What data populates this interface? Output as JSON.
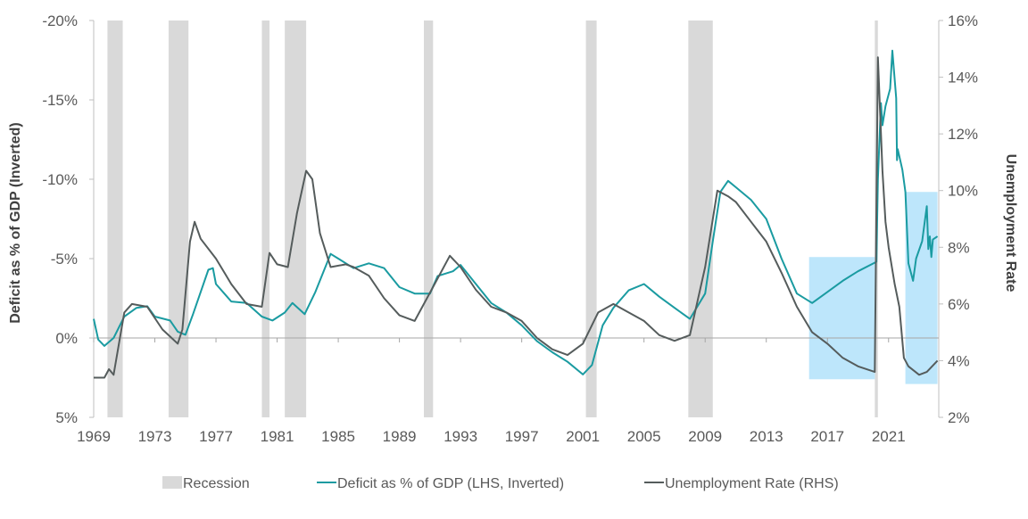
{
  "chart_data": {
    "type": "line",
    "title": "",
    "xlabel": "",
    "ylabel_left": "Deficit as % of GDP (Inverted)",
    "ylabel_right": "Unemployment Rate",
    "x_ticks": [
      "1969",
      "1973",
      "1977",
      "1981",
      "1985",
      "1989",
      "1993",
      "1997",
      "2001",
      "2005",
      "2009",
      "2013",
      "2017",
      "2021"
    ],
    "x_range": [
      1969,
      2024.3
    ],
    "y_left": {
      "range": [
        5,
        -20
      ],
      "inverted": true,
      "ticks": [
        -20,
        -15,
        -10,
        -5,
        0,
        5
      ],
      "tick_labels": [
        "-20%",
        "-15%",
        "-10%",
        "-5%",
        "0%",
        "5%"
      ]
    },
    "y_right": {
      "range": [
        2,
        16
      ],
      "ticks": [
        2,
        4,
        6,
        8,
        10,
        12,
        14,
        16
      ],
      "tick_labels": [
        "2%",
        "4%",
        "6%",
        "8%",
        "10%",
        "12%",
        "14%",
        "16%"
      ]
    },
    "grid": false,
    "legend_position": "bottom",
    "colors": {
      "recession": "#d9d9d9",
      "deficit": "#1a9ba1",
      "unemployment": "#555c5c",
      "highlight": "#bde6fb",
      "axis": "#bfbfbf"
    },
    "recessions": [
      [
        1969.9,
        1970.9
      ],
      [
        1973.9,
        1975.2
      ],
      [
        1980.0,
        1980.5
      ],
      [
        1981.5,
        1982.9
      ],
      [
        1990.6,
        1991.2
      ],
      [
        2001.2,
        2001.9
      ],
      [
        2007.9,
        2009.5
      ],
      [
        2020.1,
        2020.3
      ]
    ],
    "highlights": [
      {
        "x": [
          2015.8,
          2020.1
        ],
        "y_left": [
          -5.1,
          2.6
        ]
      },
      {
        "x": [
          2022.1,
          2024.2
        ],
        "y_left": [
          -9.2,
          2.9
        ]
      }
    ],
    "series": [
      {
        "name": "Deficit as % of GDP (LHS, Inverted)",
        "axis": "left",
        "points": [
          [
            1969.0,
            -1.2
          ],
          [
            1969.3,
            0.1
          ],
          [
            1969.7,
            0.5
          ],
          [
            1970.3,
            0
          ],
          [
            1971,
            -1.35
          ],
          [
            1971.8,
            -1.9
          ],
          [
            1972.5,
            -2.0
          ],
          [
            1973,
            -1.35
          ],
          [
            1974,
            -1.1
          ],
          [
            1974.5,
            -0.4
          ],
          [
            1975,
            -0.2
          ],
          [
            1975.5,
            -1.5
          ],
          [
            1976.5,
            -4.3
          ],
          [
            1976.8,
            -4.4
          ],
          [
            1977,
            -3.4
          ],
          [
            1978,
            -2.3
          ],
          [
            1979,
            -2.2
          ],
          [
            1980,
            -1.35
          ],
          [
            1980.7,
            -1.1
          ],
          [
            1981.5,
            -1.6
          ],
          [
            1982,
            -2.2
          ],
          [
            1982.8,
            -1.5
          ],
          [
            1983.5,
            -2.9
          ],
          [
            1984.5,
            -5.3
          ],
          [
            1985,
            -5.0
          ],
          [
            1986,
            -4.4
          ],
          [
            1987,
            -4.7
          ],
          [
            1988,
            -4.4
          ],
          [
            1989,
            -3.2
          ],
          [
            1990,
            -2.8
          ],
          [
            1991,
            -2.8
          ],
          [
            1991.5,
            -3.9
          ],
          [
            1992.5,
            -4.2
          ],
          [
            1993,
            -4.6
          ],
          [
            1994,
            -3.4
          ],
          [
            1995,
            -2.2
          ],
          [
            1996,
            -1.6
          ],
          [
            1997,
            -0.8
          ],
          [
            1998,
            0.2
          ],
          [
            1999,
            0.9
          ],
          [
            2000,
            1.5
          ],
          [
            2001,
            2.3
          ],
          [
            2001.6,
            1.7
          ],
          [
            2002.3,
            -0.8
          ],
          [
            2003,
            -1.9
          ],
          [
            2004,
            -3.0
          ],
          [
            2005,
            -3.4
          ],
          [
            2006,
            -2.6
          ],
          [
            2007,
            -1.9
          ],
          [
            2008,
            -1.2
          ],
          [
            2009,
            -2.8
          ],
          [
            2009.5,
            -6.1
          ],
          [
            2010,
            -9.2
          ],
          [
            2010.5,
            -9.9
          ],
          [
            2011,
            -9.5
          ],
          [
            2012,
            -8.7
          ],
          [
            2013,
            -7.5
          ],
          [
            2014,
            -5.0
          ],
          [
            2015,
            -2.8
          ],
          [
            2016,
            -2.2
          ],
          [
            2017,
            -2.9
          ],
          [
            2018,
            -3.6
          ],
          [
            2019,
            -4.2
          ],
          [
            2020.2,
            -4.8
          ],
          [
            2020.3,
            -10.0
          ],
          [
            2020.5,
            -14.8
          ],
          [
            2020.6,
            -13.4
          ],
          [
            2020.8,
            -14.6
          ],
          [
            2021.1,
            -15.7
          ],
          [
            2021.25,
            -18.1
          ],
          [
            2021.5,
            -15.1
          ],
          [
            2021.55,
            -11.2
          ],
          [
            2021.6,
            -11.9
          ],
          [
            2021.9,
            -10.6
          ],
          [
            2022.1,
            -9.2
          ],
          [
            2022.3,
            -4.7
          ],
          [
            2022.6,
            -3.6
          ],
          [
            2022.8,
            -5.0
          ],
          [
            2023.2,
            -6.1
          ],
          [
            2023.5,
            -8.3
          ],
          [
            2023.6,
            -5.6
          ],
          [
            2023.7,
            -6.4
          ],
          [
            2023.8,
            -5.1
          ],
          [
            2023.9,
            -6.2
          ],
          [
            2024.2,
            -6.4
          ]
        ]
      },
      {
        "name": "Unemployment Rate (RHS)",
        "axis": "right",
        "points": [
          [
            1969.0,
            3.4
          ],
          [
            1969.7,
            3.4
          ],
          [
            1970,
            3.7
          ],
          [
            1970.3,
            3.5
          ],
          [
            1971,
            5.7
          ],
          [
            1971.5,
            6.0
          ],
          [
            1972.5,
            5.9
          ],
          [
            1973.5,
            5.1
          ],
          [
            1974.5,
            4.6
          ],
          [
            1974.8,
            5.1
          ],
          [
            1975.3,
            8.2
          ],
          [
            1975.6,
            8.9
          ],
          [
            1976,
            8.3
          ],
          [
            1977,
            7.6
          ],
          [
            1978,
            6.7
          ],
          [
            1979,
            6.0
          ],
          [
            1980,
            5.9
          ],
          [
            1980.5,
            7.8
          ],
          [
            1981,
            7.4
          ],
          [
            1981.7,
            7.3
          ],
          [
            1982.3,
            9.2
          ],
          [
            1982.9,
            10.7
          ],
          [
            1983.3,
            10.4
          ],
          [
            1983.8,
            8.5
          ],
          [
            1984.5,
            7.3
          ],
          [
            1985.5,
            7.4
          ],
          [
            1986,
            7.3
          ],
          [
            1987,
            7.0
          ],
          [
            1988,
            6.2
          ],
          [
            1989,
            5.6
          ],
          [
            1990,
            5.4
          ],
          [
            1991,
            6.4
          ],
          [
            1992.3,
            7.7
          ],
          [
            1993,
            7.3
          ],
          [
            1994,
            6.5
          ],
          [
            1995,
            5.9
          ],
          [
            1996,
            5.7
          ],
          [
            1997,
            5.4
          ],
          [
            1998,
            4.8
          ],
          [
            1999,
            4.4
          ],
          [
            2000,
            4.2
          ],
          [
            2001,
            4.6
          ],
          [
            2002,
            5.7
          ],
          [
            2003,
            6.0
          ],
          [
            2004,
            5.7
          ],
          [
            2005,
            5.4
          ],
          [
            2006,
            4.9
          ],
          [
            2007,
            4.7
          ],
          [
            2008,
            4.9
          ],
          [
            2009,
            7.3
          ],
          [
            2009.8,
            10.0
          ],
          [
            2010.5,
            9.8
          ],
          [
            2011,
            9.6
          ],
          [
            2012,
            8.9
          ],
          [
            2013,
            8.2
          ],
          [
            2014,
            7.1
          ],
          [
            2015,
            5.9
          ],
          [
            2016,
            5.0
          ],
          [
            2017,
            4.6
          ],
          [
            2018,
            4.1
          ],
          [
            2019,
            3.8
          ],
          [
            2020.1,
            3.6
          ],
          [
            2020.3,
            14.7
          ],
          [
            2020.6,
            10.7
          ],
          [
            2020.8,
            8.9
          ],
          [
            2021,
            8.0
          ],
          [
            2021.4,
            6.7
          ],
          [
            2021.7,
            5.9
          ],
          [
            2022,
            4.1
          ],
          [
            2022.3,
            3.8
          ],
          [
            2023,
            3.5
          ],
          [
            2023.5,
            3.6
          ],
          [
            2024.2,
            4.0
          ]
        ]
      }
    ],
    "legend": [
      "Recession",
      "Deficit as % of GDP (LHS, Inverted)",
      "Unemployment Rate (RHS)"
    ]
  }
}
